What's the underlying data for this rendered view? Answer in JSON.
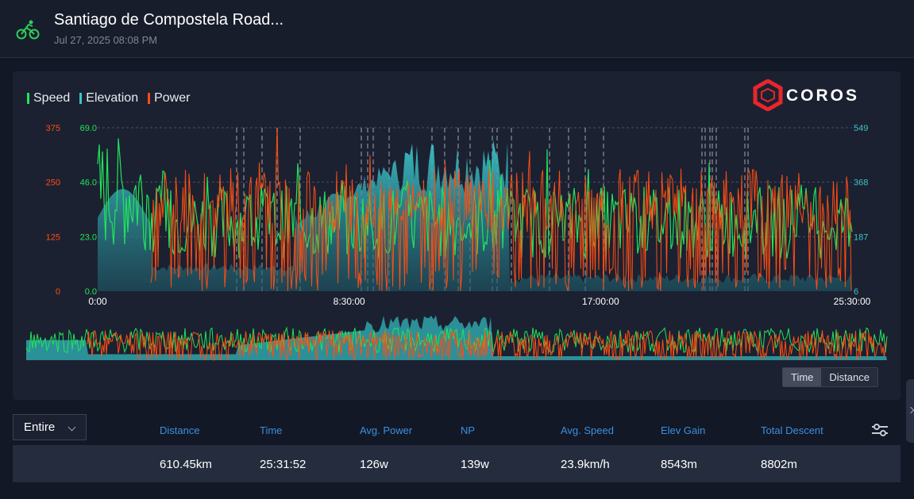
{
  "header": {
    "title": "Santiago de Compostela Road...",
    "subtitle": "Jul 27, 2025 08:08 PM",
    "icon": "cycling-icon"
  },
  "legend": [
    {
      "label": "Speed",
      "color": "#22e35a"
    },
    {
      "label": "Elevation",
      "color": "#3cc4c9"
    },
    {
      "label": "Power",
      "color": "#ff4d12"
    }
  ],
  "brand": {
    "name": "COROS",
    "color": "#e8262c"
  },
  "chart_data": {
    "type": "area",
    "x_ticks": [
      "0:00",
      "8:30:00",
      "17:00:00",
      "25:30:00"
    ],
    "axes": {
      "power": {
        "ticks": [
          "375",
          "250",
          "125",
          "0"
        ],
        "color": "#ff4d12",
        "range": [
          0,
          375
        ]
      },
      "speed": {
        "ticks": [
          "69.0",
          "46.0",
          "23.0",
          "0.0"
        ],
        "color": "#22e35a",
        "range": [
          0,
          69
        ]
      },
      "elevation": {
        "ticks": [
          "549",
          "368",
          "187",
          "6"
        ],
        "color": "#3cc4c9",
        "range": [
          6,
          549
        ]
      }
    },
    "series": [
      {
        "name": "Speed",
        "color": "#22e35a"
      },
      {
        "name": "Elevation",
        "color": "#3cc4c9"
      },
      {
        "name": "Power",
        "color": "#ff4d12"
      }
    ],
    "grid": true
  },
  "toggle": {
    "time_label": "Time",
    "distance_label": "Distance",
    "active": "Time"
  },
  "range_select": {
    "value": "Entire"
  },
  "stats": {
    "headers": [
      "Distance",
      "Time",
      "Avg. Power",
      "NP",
      "Avg. Speed",
      "Elev Gain",
      "Total Descent"
    ],
    "values": [
      "610.45km",
      "25:31:52",
      "126w",
      "139w",
      "23.9km/h",
      "8543m",
      "8802m"
    ]
  }
}
